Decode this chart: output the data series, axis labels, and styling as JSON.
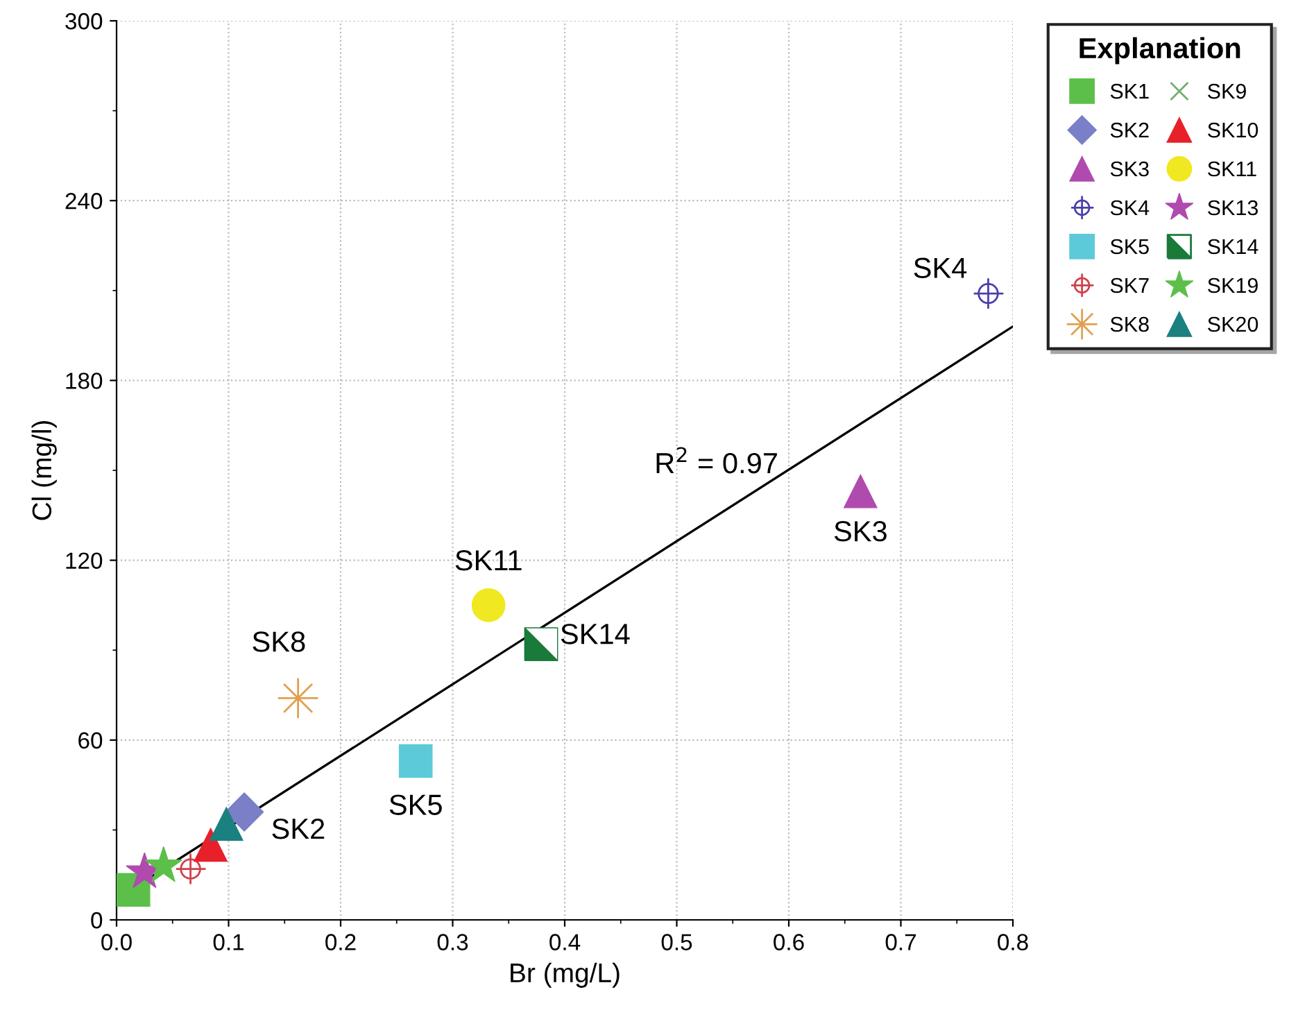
{
  "chart_data": {
    "type": "scatter",
    "xlabel": "Br (mg/L)",
    "ylabel": "Cl (mg/l)",
    "legend_title": "Explanation",
    "xlim": [
      0,
      0.8
    ],
    "ylim": [
      0,
      300
    ],
    "xticks": [
      {
        "value": 0,
        "label": "0.0"
      },
      0.1,
      0.2,
      0.3,
      0.4,
      0.5,
      0.6,
      0.7,
      0.8
    ],
    "yticks": [
      0,
      60,
      120,
      180,
      240,
      300
    ],
    "grid": true,
    "legend": "top right",
    "series": [
      {
        "name": "SK1",
        "color": "#5cbf4a",
        "marker": "square",
        "x": [
          0.015
        ],
        "values": [
          10
        ]
      },
      {
        "name": "SK2",
        "color": "#7b7fc8",
        "marker": "diamond",
        "x": [
          0.114
        ],
        "values": [
          36
        ]
      },
      {
        "name": "SK3",
        "color": "#b04aae",
        "marker": "triangle",
        "x": [
          0.664
        ],
        "values": [
          143
        ]
      },
      {
        "name": "SK4",
        "color": "#4a3fae",
        "marker": "cross",
        "x": [
          0.778
        ],
        "values": [
          209
        ]
      },
      {
        "name": "SK5",
        "color": "#5ccad8",
        "marker": "square",
        "x": [
          0.267
        ],
        "values": [
          53
        ]
      },
      {
        "name": "SK7",
        "color": "#d0404a",
        "marker": "cross",
        "x": [
          0.066
        ],
        "values": [
          17
        ]
      },
      {
        "name": "SK8",
        "color": "#e0a050",
        "marker": "cross",
        "x": [
          0.162
        ],
        "values": [
          74
        ]
      },
      {
        "name": "SK9",
        "color": "#70b070",
        "marker": "cross",
        "x": [
          null
        ],
        "values": [
          null
        ]
      },
      {
        "name": "SK10",
        "color": "#e8202a",
        "marker": "triangle",
        "x": [
          0.084
        ],
        "values": [
          25
        ]
      },
      {
        "name": "SK11",
        "color": "#f0e820",
        "marker": "circle",
        "x": [
          0.332
        ],
        "values": [
          105
        ]
      },
      {
        "name": "SK13",
        "color": "#b04aae",
        "marker": "star",
        "x": [
          0.025
        ],
        "values": [
          16
        ]
      },
      {
        "name": "SK14",
        "color": "#1a7a3a",
        "marker": "square",
        "x": [
          0.379
        ],
        "values": [
          92
        ]
      },
      {
        "name": "SK19",
        "color": "#5cbf4a",
        "marker": "star",
        "x": [
          0.042
        ],
        "values": [
          18
        ]
      },
      {
        "name": "SK20",
        "color": "#1a8080",
        "marker": "triangle",
        "x": [
          0.098
        ],
        "values": [
          32
        ]
      },
      {
        "type": "line",
        "color": "#000000",
        "x": [
          0,
          0.8
        ],
        "values": [
          7,
          198
        ]
      }
    ],
    "annotations": [
      {
        "text": "SK4",
        "x": 0.778,
        "y": 209
      },
      {
        "text": "SK3",
        "x": 0.664,
        "y": 143
      },
      {
        "text": "SK11",
        "x": 0.332,
        "y": 105
      },
      {
        "text": "SK14",
        "x": 0.379,
        "y": 92
      },
      {
        "text": "SK8",
        "x": 0.162,
        "y": 74
      },
      {
        "text": "SK5",
        "x": 0.267,
        "y": 53
      },
      {
        "text": "SK2",
        "x": 0.114,
        "y": 36
      },
      "R$^{2}$ = 0.97"
    ]
  }
}
